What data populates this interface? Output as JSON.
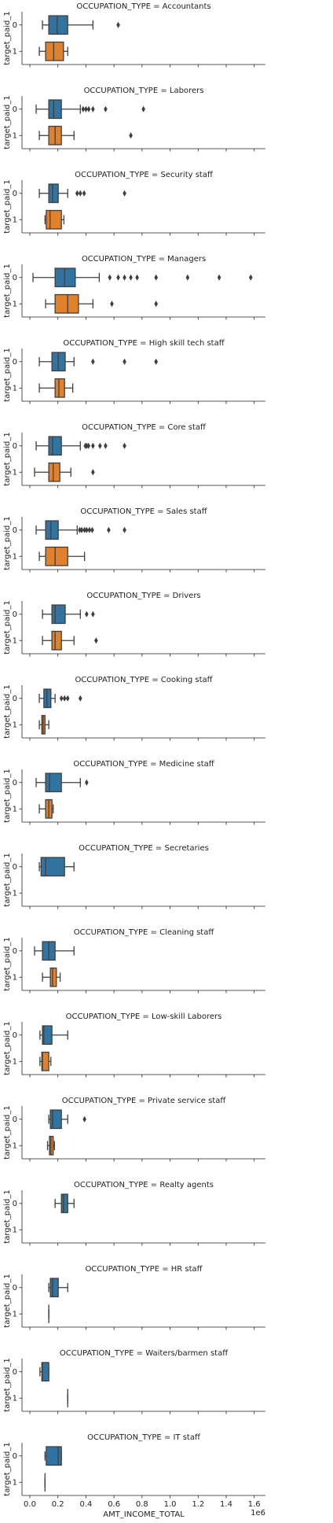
{
  "chart_data": {
    "type": "box",
    "orientation": "horizontal",
    "xlabel": "AMT_INCOME_TOTAL",
    "x_offset_label": "1e6",
    "ylabel": "target_paid_1",
    "categories": [
      "0",
      "1"
    ],
    "colors": [
      "#3274a1",
      "#e1812c"
    ],
    "xlim": [
      -56000,
      1680000
    ],
    "xticks": [
      {
        "value": 0,
        "label": "0.0"
      },
      {
        "value": 200000,
        "label": "0.2"
      },
      {
        "value": 400000,
        "label": "0.4"
      },
      {
        "value": 600000,
        "label": "0.6"
      },
      {
        "value": 800000,
        "label": "0.8"
      },
      {
        "value": 1000000,
        "label": "1.0"
      },
      {
        "value": 1200000,
        "label": "1.2"
      },
      {
        "value": 1400000,
        "label": "1.4"
      },
      {
        "value": 1600000,
        "label": "1.6"
      }
    ],
    "facets": [
      {
        "title": "OCCUPATION_TYPE = Accountants",
        "boxes": [
          {
            "min": 90000,
            "q1": 135000,
            "median": 195000,
            "q3": 270000,
            "max": 450000,
            "outliers": [
              630000
            ]
          },
          {
            "min": 67500,
            "q1": 112500,
            "median": 170000,
            "q3": 240000,
            "max": 270000,
            "outliers": []
          }
        ]
      },
      {
        "title": "OCCUPATION_TYPE = Laborers",
        "boxes": [
          {
            "min": 45000,
            "q1": 135000,
            "median": 170000,
            "q3": 225000,
            "max": 360000,
            "outliers": [
              380000,
              400000,
              420000,
              450000,
              540000,
              810000
            ]
          },
          {
            "min": 67500,
            "q1": 135000,
            "median": 180000,
            "q3": 225000,
            "max": 315000,
            "outliers": [
              720000
            ]
          }
        ]
      },
      {
        "title": "OCCUPATION_TYPE = Security staff",
        "boxes": [
          {
            "min": 67500,
            "q1": 135000,
            "median": 162000,
            "q3": 202500,
            "max": 270000,
            "outliers": [
              337500,
              360000,
              387000,
              675000
            ]
          },
          {
            "min": 108000,
            "q1": 117000,
            "median": 144000,
            "q3": 225000,
            "max": 243000,
            "outliers": []
          }
        ]
      },
      {
        "title": "OCCUPATION_TYPE = Managers",
        "boxes": [
          {
            "min": 22500,
            "q1": 180000,
            "median": 247500,
            "q3": 324000,
            "max": 495000,
            "outliers": [
              570000,
              630000,
              675000,
              720000,
              765000,
              900000,
              1125000,
              1350000,
              1575000
            ]
          },
          {
            "min": 112500,
            "q1": 180000,
            "median": 270000,
            "q3": 346500,
            "max": 450000,
            "outliers": [
              585000,
              900000
            ]
          }
        ]
      },
      {
        "title": "OCCUPATION_TYPE = High skill tech staff",
        "boxes": [
          {
            "min": 67500,
            "q1": 157500,
            "median": 202500,
            "q3": 252000,
            "max": 315000,
            "outliers": [
              450000,
              675000,
              900000
            ]
          },
          {
            "min": 67500,
            "q1": 180000,
            "median": 207000,
            "q3": 247500,
            "max": 306000,
            "outliers": []
          }
        ]
      },
      {
        "title": "OCCUPATION_TYPE = Core staff",
        "boxes": [
          {
            "min": 45000,
            "q1": 135000,
            "median": 162000,
            "q3": 225000,
            "max": 360000,
            "outliers": [
              396000,
              405000,
              418500,
              450000,
              500000,
              540000,
              675000
            ]
          },
          {
            "min": 33750,
            "q1": 135000,
            "median": 166500,
            "q3": 213750,
            "max": 292500,
            "outliers": [
              450000
            ]
          }
        ]
      },
      {
        "title": "OCCUPATION_TYPE = Sales staff",
        "boxes": [
          {
            "min": 45000,
            "q1": 112500,
            "median": 150000,
            "q3": 202500,
            "max": 337500,
            "outliers": [
              355500,
              370000,
              390000,
              405000,
              425000,
              445000,
              562500,
              675000
            ]
          },
          {
            "min": 67500,
            "q1": 112500,
            "median": 180000,
            "q3": 270000,
            "max": 390000,
            "outliers": []
          }
        ]
      },
      {
        "title": "OCCUPATION_TYPE = Drivers",
        "boxes": [
          {
            "min": 90000,
            "q1": 157500,
            "median": 180000,
            "q3": 252000,
            "max": 360000,
            "outliers": [
              405000,
              450000
            ]
          },
          {
            "min": 90000,
            "q1": 157500,
            "median": 180000,
            "q3": 225000,
            "max": 315000,
            "outliers": [
              472500
            ]
          }
        ]
      },
      {
        "title": "OCCUPATION_TYPE = Cooking staff",
        "boxes": [
          {
            "min": 67500,
            "q1": 100000,
            "median": 121500,
            "q3": 150000,
            "max": 180000,
            "outliers": [
              225000,
              247500,
              270000,
              360000
            ]
          },
          {
            "min": 67500,
            "q1": 85500,
            "median": 95000,
            "q3": 108000,
            "max": 135000,
            "outliers": []
          }
        ]
      },
      {
        "title": "OCCUPATION_TYPE = Medicine staff",
        "boxes": [
          {
            "min": 45000,
            "q1": 112500,
            "median": 140000,
            "q3": 225000,
            "max": 360000,
            "outliers": [
              405000
            ]
          },
          {
            "min": 67500,
            "q1": 112500,
            "median": 135000,
            "q3": 157500,
            "max": 166500,
            "outliers": []
          }
        ]
      },
      {
        "title": "OCCUPATION_TYPE = Secretaries",
        "boxes": [
          {
            "min": 67500,
            "q1": 80000,
            "median": 112500,
            "q3": 247500,
            "max": 315000,
            "outliers": []
          },
          null
        ]
      },
      {
        "title": "OCCUPATION_TYPE = Cleaning staff",
        "boxes": [
          {
            "min": 33750,
            "q1": 90000,
            "median": 135000,
            "q3": 180000,
            "max": 315000,
            "outliers": []
          },
          {
            "min": 90000,
            "q1": 146250,
            "median": 162000,
            "q3": 189000,
            "max": 216000,
            "outliers": []
          }
        ]
      },
      {
        "title": "OCCUPATION_TYPE = Low-skill Laborers",
        "boxes": [
          {
            "min": 72000,
            "q1": 90000,
            "median": 100000,
            "q3": 157500,
            "max": 270000,
            "outliers": []
          },
          {
            "min": 72000,
            "q1": 85500,
            "median": 90000,
            "q3": 135000,
            "max": 150000,
            "outliers": []
          }
        ]
      },
      {
        "title": "OCCUPATION_TYPE = Private service staff",
        "boxes": [
          {
            "min": 135000,
            "q1": 146250,
            "median": 162000,
            "q3": 225000,
            "max": 270000,
            "outliers": [
              390000
            ]
          },
          {
            "min": 126000,
            "q1": 140000,
            "median": 150000,
            "q3": 166500,
            "max": 175500,
            "outliers": []
          }
        ]
      },
      {
        "title": "OCCUPATION_TYPE = Realty agents",
        "boxes": [
          {
            "min": 180000,
            "q1": 225000,
            "median": 240000,
            "q3": 270000,
            "max": 315000,
            "outliers": []
          },
          null
        ]
      },
      {
        "title": "OCCUPATION_TYPE = HR staff",
        "boxes": [
          {
            "min": 135000,
            "q1": 146250,
            "median": 162000,
            "q3": 202500,
            "max": 270000,
            "outliers": []
          },
          {
            "min": 135000,
            "q1": 135000,
            "median": 135000,
            "q3": 135000,
            "max": 135000,
            "outliers": []
          }
        ]
      },
      {
        "title": "OCCUPATION_TYPE = Waiters/barmen staff",
        "boxes": [
          {
            "min": 72000,
            "q1": 85500,
            "median": 90000,
            "q3": 135000,
            "max": 135000,
            "outliers": []
          },
          {
            "min": 270000,
            "q1": 270000,
            "median": 270000,
            "q3": 270000,
            "max": 270000,
            "outliers": []
          }
        ]
      },
      {
        "title": "OCCUPATION_TYPE = IT staff",
        "boxes": [
          {
            "min": 108000,
            "q1": 117000,
            "median": 202500,
            "q3": 225000,
            "max": 225000,
            "outliers": []
          },
          {
            "min": 108000,
            "q1": 108000,
            "median": 108000,
            "q3": 108000,
            "max": 108000,
            "outliers": []
          }
        ]
      }
    ]
  }
}
